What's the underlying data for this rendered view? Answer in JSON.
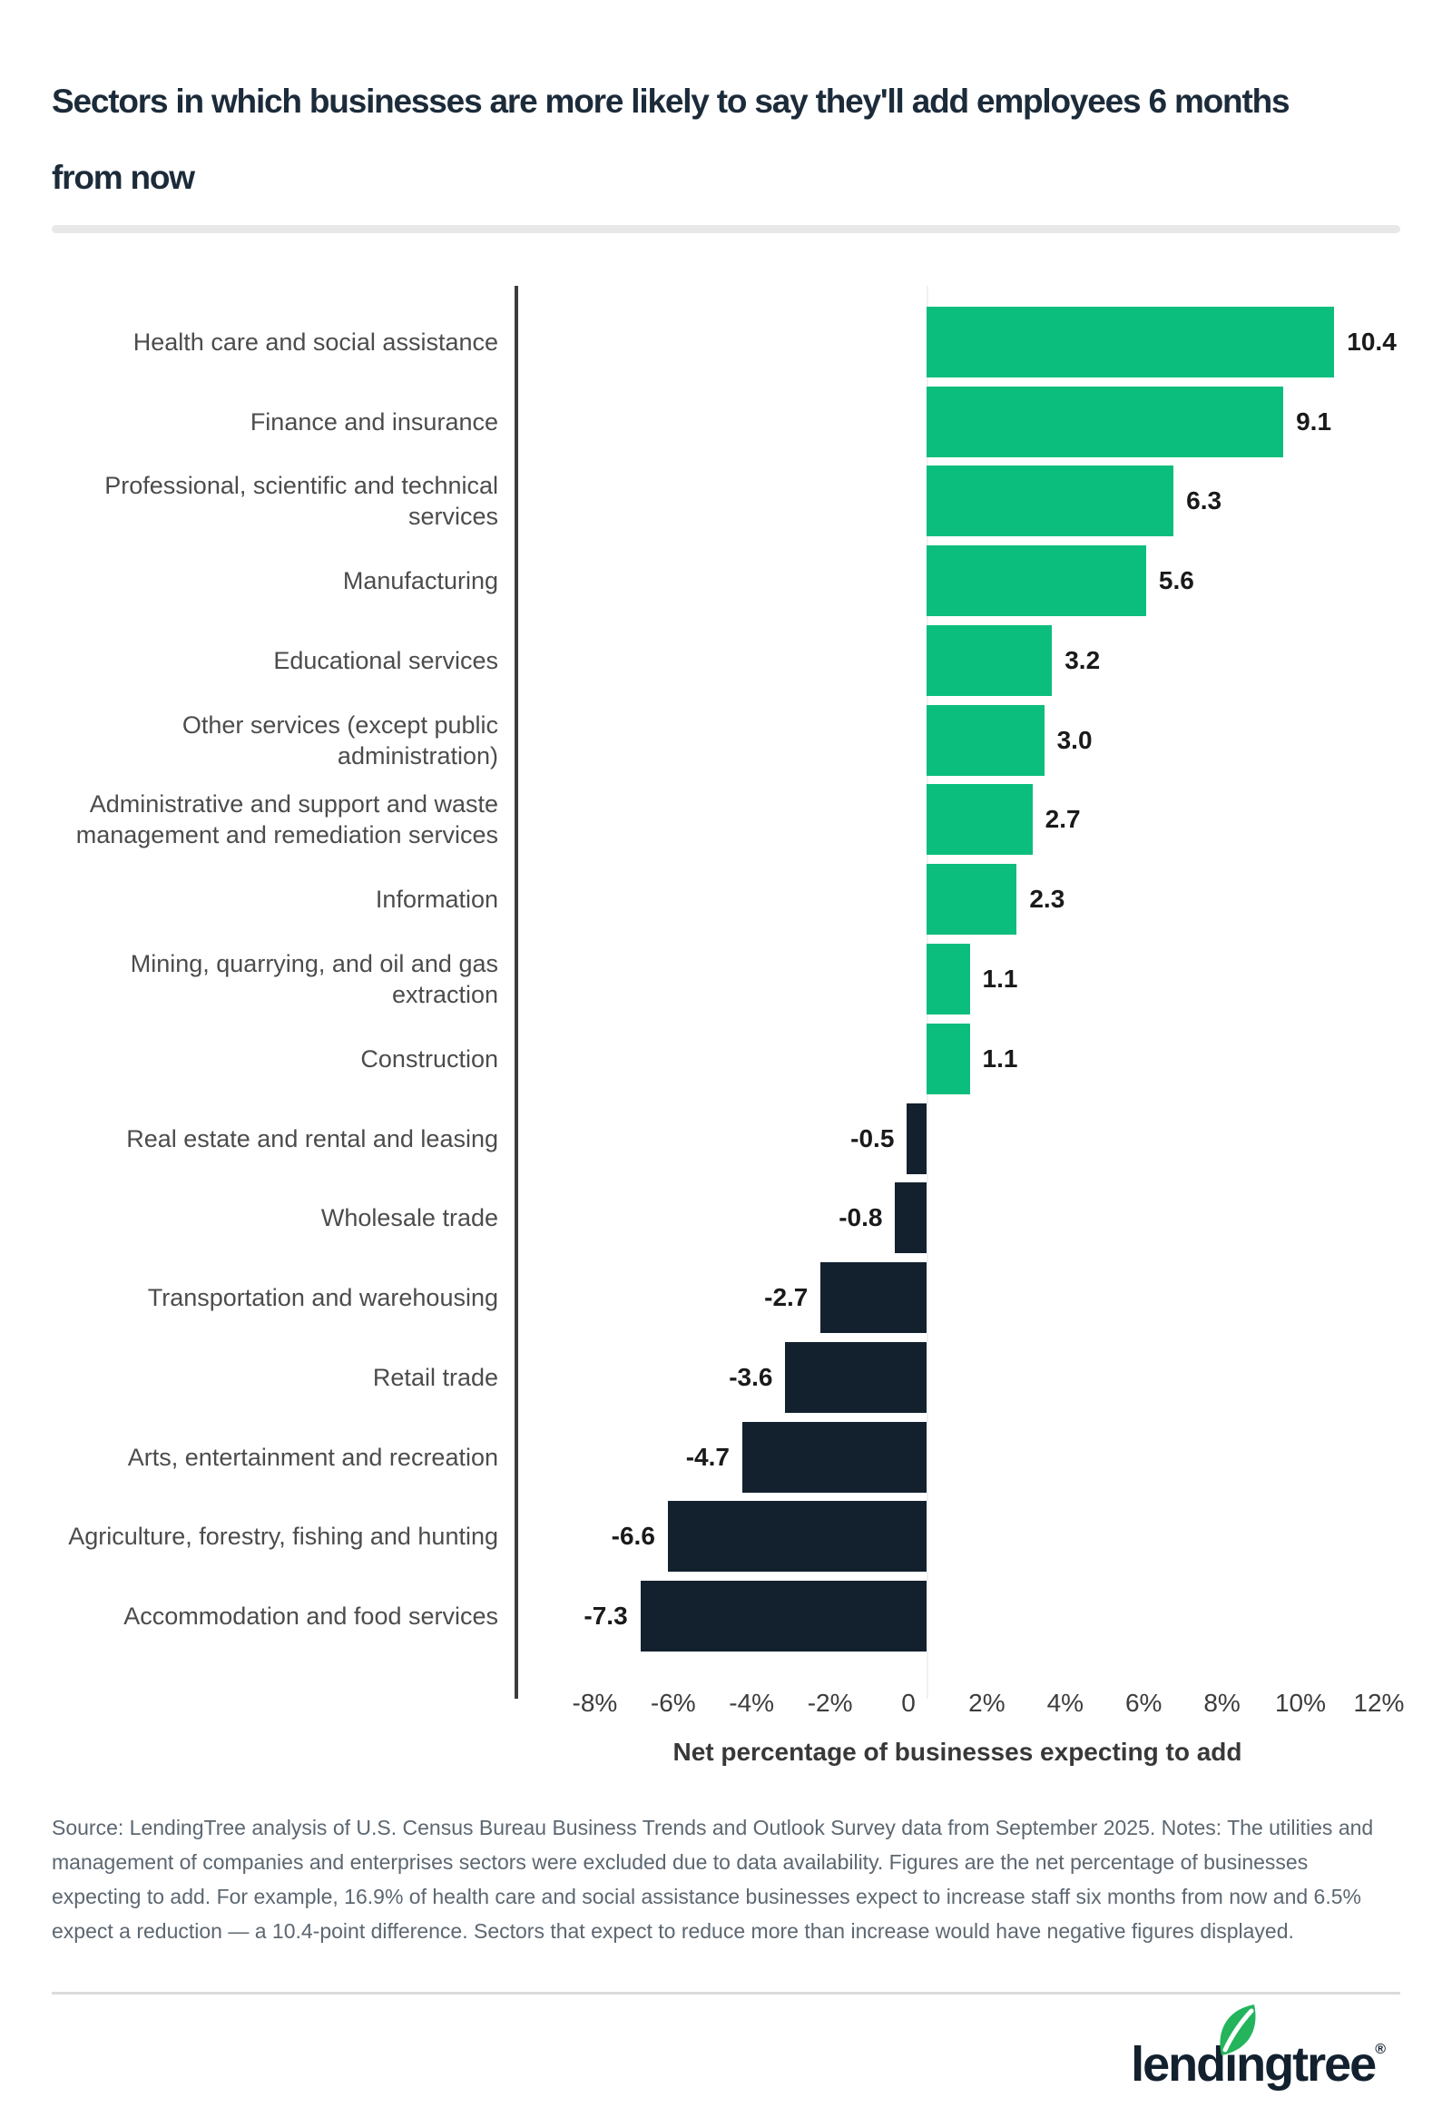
{
  "header": {
    "title": "Sectors in which businesses are more likely to say they'll add employees 6 months from now",
    "title_lines": [
      "Sectors in which businesses are more likely to say they'll add employees 6 months",
      "from now"
    ]
  },
  "chart_data": {
    "type": "bar",
    "orientation": "horizontal",
    "title": "Sectors in which businesses are more likely to say they'll add employees 6 months from now",
    "xlabel": "Net percentage of businesses expecting to add",
    "ylabel": "",
    "grid": false,
    "legend": false,
    "axis_range_pct": [
      -10.5,
      12.1
    ],
    "x_ticks": [
      {
        "value": -8,
        "label": "-8%"
      },
      {
        "value": -6,
        "label": "-6%"
      },
      {
        "value": -4,
        "label": "-4%"
      },
      {
        "value": -2,
        "label": "-2%"
      },
      {
        "value": 0,
        "label": "0"
      },
      {
        "value": 2,
        "label": "2%"
      },
      {
        "value": 4,
        "label": "4%"
      },
      {
        "value": 6,
        "label": "6%"
      },
      {
        "value": 8,
        "label": "8%"
      },
      {
        "value": 10,
        "label": "10%"
      },
      {
        "value": 12,
        "label": "12%"
      }
    ],
    "bars": [
      {
        "category": "Health care and social assistance",
        "value": 10.4,
        "label": "10.4"
      },
      {
        "category": "Finance and insurance",
        "value": 9.1,
        "label": "9.1"
      },
      {
        "category": "Professional, scientific and technical services",
        "value": 6.3,
        "label": "6.3"
      },
      {
        "category": "Manufacturing",
        "value": 5.6,
        "label": "5.6"
      },
      {
        "category": "Educational services",
        "value": 3.2,
        "label": "3.2"
      },
      {
        "category": "Other services (except public administration)",
        "value": 3.0,
        "label": "3.0"
      },
      {
        "category": "Administrative and support and waste management and remediation services",
        "value": 2.7,
        "label": "2.7"
      },
      {
        "category": "Information",
        "value": 2.3,
        "label": "2.3"
      },
      {
        "category": "Mining, quarrying, and oil and gas extraction",
        "value": 1.1,
        "label": "1.1"
      },
      {
        "category": "Construction",
        "value": 1.1,
        "label": "1.1"
      },
      {
        "category": "Real estate and rental and leasing",
        "value": -0.5,
        "label": "-0.5"
      },
      {
        "category": "Wholesale trade",
        "value": -0.8,
        "label": "-0.8"
      },
      {
        "category": "Transportation and warehousing",
        "value": -2.7,
        "label": "-2.7"
      },
      {
        "category": "Retail trade",
        "value": -3.6,
        "label": "-3.6"
      },
      {
        "category": "Arts, entertainment and recreation",
        "value": -4.7,
        "label": "-4.7"
      },
      {
        "category": "Agriculture, forestry, fishing and hunting",
        "value": -6.6,
        "label": "-6.6"
      },
      {
        "category": "Accommodation and food services",
        "value": -7.3,
        "label": "-7.3"
      }
    ],
    "positive_color": "#0CBE7D",
    "negative_color": "#13212F"
  },
  "source_note": "Source: LendingTree analysis of U.S. Census Bureau Business Trends and Outlook Survey data from September 2025. Notes: The utilities and management of companies and enterprises sectors were excluded due to data availability. Figures are the net percentage of businesses expecting to add. For example, 16.9% of health care and social assistance businesses expect to increase staff six months from now and 6.5% expect a reduction — a 10.4-point difference. Sectors that expect to reduce more than increase would have negative figures displayed.",
  "footer": {
    "logo": {
      "brand": "lendingtree",
      "text_before_leaf": "lend",
      "dotless_i": "ı",
      "text_after_leaf": "ngtree",
      "registered_mark": "®",
      "leaf_color": "#24B45B",
      "text_color": "#13212F"
    }
  }
}
